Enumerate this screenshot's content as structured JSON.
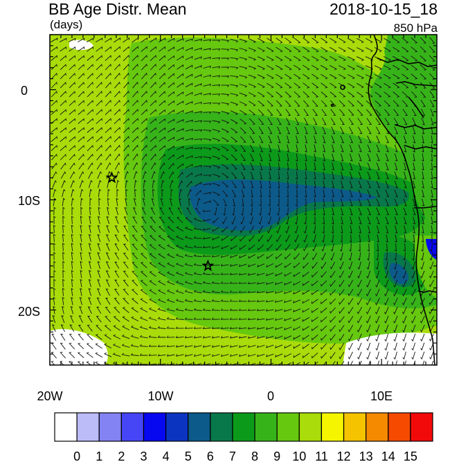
{
  "header": {
    "title_left": "BB Age Distr. Mean",
    "units": "(days)",
    "datetime": "2018-10-15_18",
    "level": "850 hPa"
  },
  "map": {
    "lon_range": [
      -20,
      15
    ],
    "lat_range": [
      -25,
      5
    ],
    "x_tick_labels": [
      "20W",
      "10W",
      "0",
      "10E"
    ],
    "y_tick_labels": [
      "0",
      "10S",
      "20S"
    ],
    "stars": [
      {
        "lon": -14.4,
        "lat": -8.0
      },
      {
        "lon": -5.7,
        "lat": -16.0
      }
    ]
  },
  "colorbar": {
    "labels": [
      "0",
      "1",
      "2",
      "3",
      "4",
      "5",
      "6",
      "7",
      "8",
      "9",
      "10",
      "11",
      "12",
      "13",
      "14",
      "15"
    ],
    "colors": [
      "#ffffff",
      "#bcbcf8",
      "#8383f4",
      "#4646f6",
      "#0808f0",
      "#0b34c0",
      "#0c5a8a",
      "#08784a",
      "#0c9a1a",
      "#37b31a",
      "#66c80f",
      "#a9dc0a",
      "#f5f500",
      "#f5c300",
      "#f58900",
      "#f54a00",
      "#f20a0a"
    ]
  }
}
